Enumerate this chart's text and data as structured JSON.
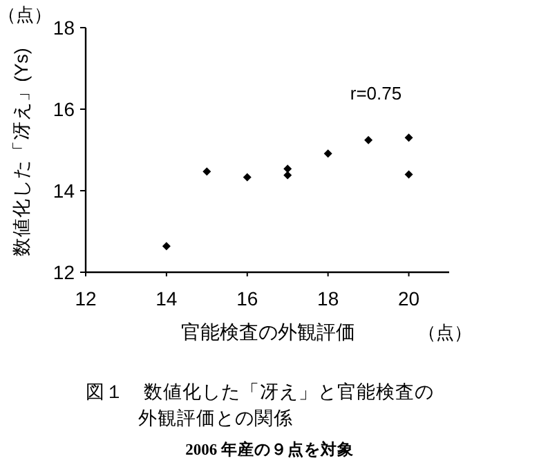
{
  "chart_data": {
    "type": "scatter",
    "title": "図１　数値化した「冴え」と官能検査の外観評価との関係",
    "subtitle": "2006 年産の９点を対象",
    "xlabel": "官能検査の外観評価",
    "ylabel": "数値化した「冴え」(Ys)",
    "annotations": [
      "（点）",
      "（点）",
      "r=0.75"
    ],
    "x": [
      14,
      15,
      16,
      17,
      17,
      18,
      19,
      20,
      20
    ],
    "values": [
      12.64,
      14.47,
      14.33,
      14.54,
      14.38,
      14.91,
      15.24,
      15.3,
      14.4
    ],
    "color": "#000000",
    "marker": "diamond",
    "xlim": [
      12,
      21
    ],
    "xticks": [
      12,
      14,
      16,
      18,
      20
    ],
    "ylim": [
      12,
      18
    ],
    "yticks": [
      12,
      14,
      16,
      18
    ],
    "grid": false
  }
}
